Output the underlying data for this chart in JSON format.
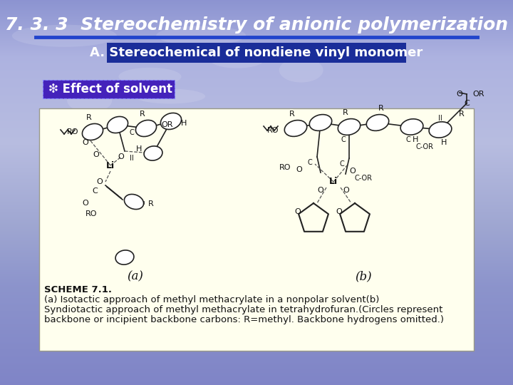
{
  "title": "7. 3. 3  Stereochemistry of anionic polymerization",
  "subtitle": "A. Stereochemical of nondiene vinyl monomer",
  "bullet_label": "❇ Effect of solvent",
  "scheme_caption_bold": "SCHEME 7.1.",
  "scheme_caption_rest": " (a) Isotactic approach of methyl methacrylate in a nonpolar solvent(b)\nSyndiotactic approach of methyl methacrylate in tetrahydrofuran.(Circles represent\nbackbone or incipient backbone carbons: R=methyl. Backbone hydrogens omitted.)",
  "label_a": "(a)",
  "label_b": "(b)",
  "bg_top_color": "#8899cc",
  "bg_mid_color": "#b0c0dd",
  "bg_bot_color": "#8090bb",
  "title_color": "#ffffff",
  "title_fontsize": 18,
  "subtitle_bg": "#1a2d99",
  "subtitle_color": "#ffffff",
  "subtitle_fontsize": 13,
  "bullet_bg": "#4422bb",
  "bullet_color": "#ffffff",
  "bullet_fontsize": 12,
  "divider_color": "#2244cc",
  "box_bg": "#ffffee",
  "caption_bg": "#ffffee",
  "caption_color": "#111111",
  "caption_fontsize": 9.5,
  "label_fontsize": 12
}
